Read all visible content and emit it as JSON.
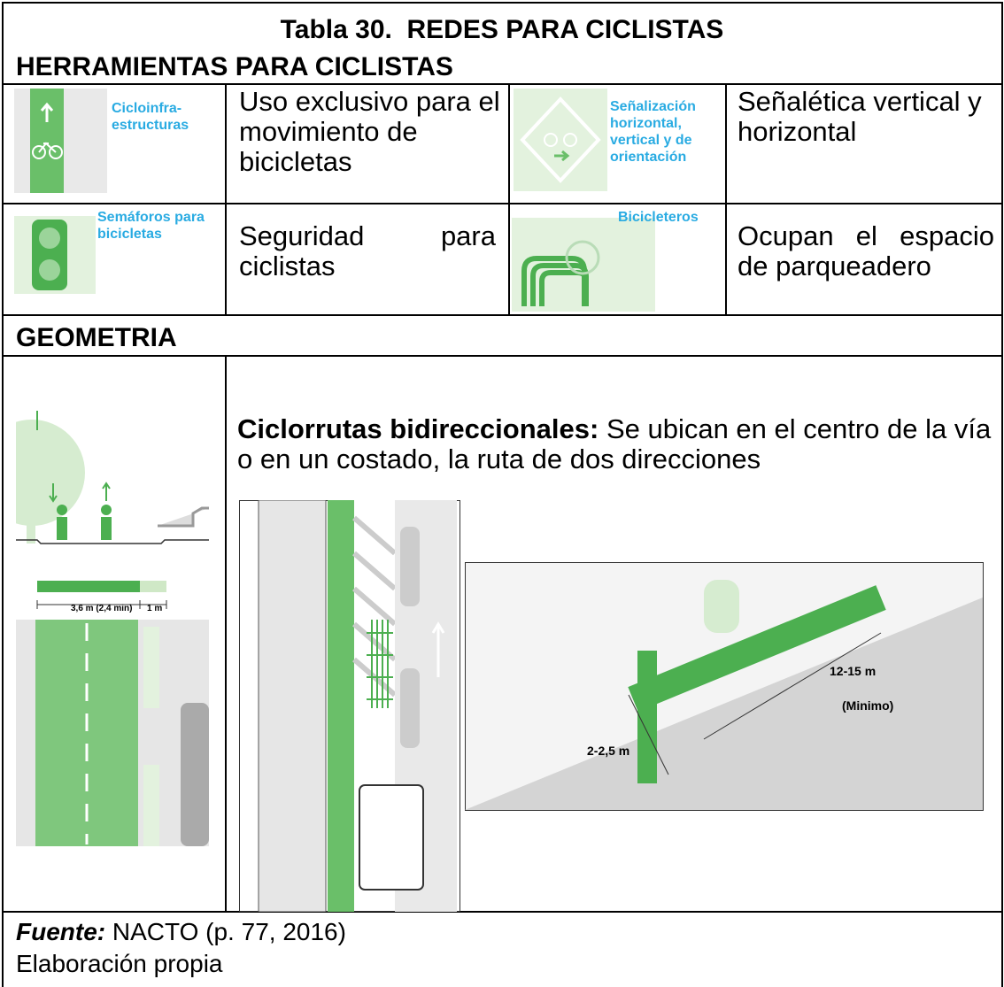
{
  "header": {
    "title": "Tabla 30.  REDES PARA CICLISTAS"
  },
  "tools": {
    "title": "HERRAMIENTAS PARA CICLISTAS",
    "rows": [
      [
        {
          "icon_label": "Cicloinfra-estructuras",
          "text": "Uso exclusivo para el movimiento de bicicletas"
        },
        {
          "icon_label": "Señalización horizontal, vertical y de orientación",
          "text": "Señalética vertical y horizontal"
        }
      ],
      [
        {
          "icon_label": "Semáforos para bicicletas",
          "text": "Seguridad para ciclistas"
        },
        {
          "icon_label": "Bicicleteros",
          "text": "Ocupan el espacio de parqueadero"
        }
      ]
    ]
  },
  "geometry": {
    "title": "GEOMETRIA",
    "heading": "Ciclorrutas bidireccionales:",
    "text": "Se ubican en el centro de la vía o en un costado, la ruta de dos direcciones",
    "section_labels": [
      "3,6 m (2,4 min)",
      "1 m"
    ],
    "perspective_labels": [
      "12-15 m",
      "(Minimo)",
      "2-2,5 m"
    ]
  },
  "footer": {
    "source_label": "Fuente:",
    "source": "NACTO (p. 77, 2016)",
    "note": "Elaboración propia"
  }
}
